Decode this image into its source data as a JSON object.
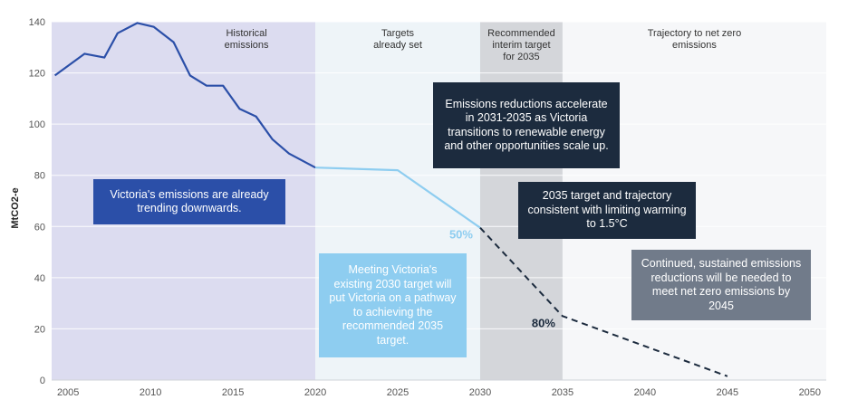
{
  "chart_data": {
    "type": "line",
    "ylabel": "MtCO2-e",
    "xlabel": "",
    "xlim": [
      2004,
      2051
    ],
    "ylim": [
      0,
      140
    ],
    "x_ticks": [
      "2005",
      "2010",
      "2015",
      "2020",
      "2025",
      "2030",
      "2035",
      "2040",
      "2045",
      "2050"
    ],
    "y_ticks": [
      "0",
      "20",
      "40",
      "60",
      "80",
      "100",
      "120",
      "140"
    ],
    "periods": [
      {
        "label": "Historical emissions",
        "from": 2004,
        "to": 2020,
        "color": "#dcdcf0"
      },
      {
        "label": "Targets already set",
        "from": 2020,
        "to": 2030,
        "color": "#eef4f8"
      },
      {
        "label": "Recommended interim target for 2035",
        "from": 2030,
        "to": 2035,
        "color": "#d4d6da"
      },
      {
        "label": "Trajectory to net zero emissions",
        "from": 2035,
        "to": 2051,
        "color": "#f6f7f9"
      }
    ],
    "series": [
      {
        "name": "Historical emissions",
        "style": "solid",
        "color": "#2b4fa8",
        "x": [
          2004.2,
          2006,
          2007.2,
          2008,
          2009.2,
          2010.2,
          2011.4,
          2012.4,
          2013.4,
          2014.4,
          2015.4,
          2016.4,
          2017.4,
          2018.4,
          2020
        ],
        "y": [
          119,
          127.5,
          126,
          135.5,
          139.5,
          138,
          132,
          119,
          115,
          115,
          106,
          103,
          94,
          88.5,
          83
        ]
      },
      {
        "name": "Targets already set",
        "style": "solid",
        "color": "#8ecdf0",
        "x": [
          2020,
          2025,
          2030
        ],
        "y": [
          83,
          82,
          59.5
        ]
      },
      {
        "name": "Trajectory to net zero",
        "style": "dashed",
        "color": "#1c2b3e",
        "x": [
          2030,
          2035,
          2045
        ],
        "y": [
          59.5,
          25,
          1.5
        ]
      }
    ],
    "labels": [
      {
        "text": "50%",
        "x": 2030,
        "y": 59.5,
        "color": "#8ecdf0"
      },
      {
        "text": "80%",
        "x": 2035,
        "y": 25,
        "color": "#1c2b3e"
      }
    ]
  },
  "annotations": {
    "trending": "Victoria's emissions are already trending downwards.",
    "meeting": "Meeting Victoria's existing 2030 target will put Victoria on a pathway to achieving the recommended 2035 target.",
    "accelerate": "Emissions reductions accelerate in 2031-2035 as Victoria transitions to renewable energy and other opportunities scale up.",
    "target2035": "2035 target and trajectory consistent with limiting warming to 1.5°C",
    "continued": "Continued, sustained emissions reductions will be needed to meet net zero emissions by 2045"
  },
  "colors": {
    "navy": "#1c2b3e",
    "blue": "#2b4fa8",
    "lightblue": "#8ecdf0",
    "slate": "#717b8a"
  }
}
